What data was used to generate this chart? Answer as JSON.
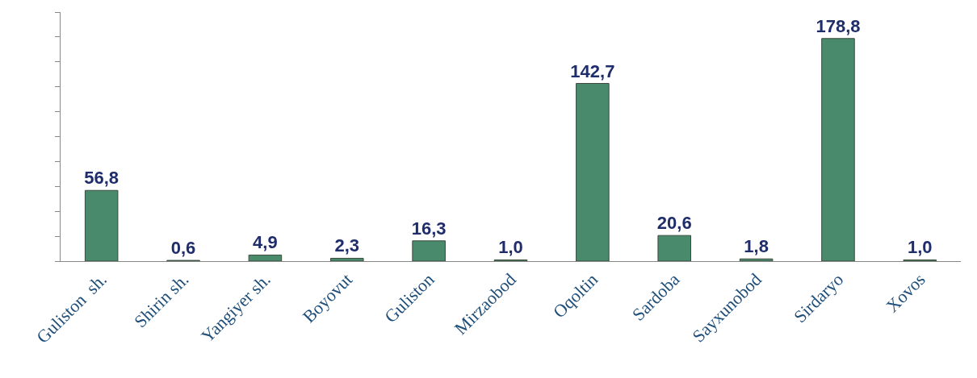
{
  "chart_data": {
    "type": "bar",
    "categories": [
      "Guliston  sh.",
      "Shirin sh.",
      "Yangiyer sh.",
      "Boyovut",
      "Guliston",
      "Mirzaobod",
      "Oqoltin",
      "Sardoba",
      "Sayxunobod",
      "Sirdaryo",
      "Xovos"
    ],
    "values": [
      56.8,
      0.6,
      4.9,
      2.3,
      16.3,
      1.0,
      142.7,
      20.6,
      1.8,
      178.8,
      1.0
    ],
    "value_labels": [
      "56,8",
      "0,6",
      "4,9",
      "2,3",
      "16,3",
      "1,0",
      "142,7",
      "20,6",
      "1,8",
      "178,8",
      "1,0"
    ],
    "color": "#4a8a6c",
    "ylim": [
      0,
      200
    ],
    "yticks": [
      {
        "value": 0,
        "label": null
      },
      {
        "value": 20,
        "label": null
      },
      {
        "value": 40,
        "label": null
      },
      {
        "value": 60,
        "label": null
      },
      {
        "value": 80,
        "label": null
      },
      {
        "value": 100,
        "label": null
      },
      {
        "value": 120,
        "label": null
      },
      {
        "value": 140,
        "label": null
      },
      {
        "value": 160,
        "label": null
      },
      {
        "value": 180,
        "label": null
      },
      {
        "value": 200,
        "label": null
      }
    ],
    "tick_labels": "x",
    "legend": false
  }
}
